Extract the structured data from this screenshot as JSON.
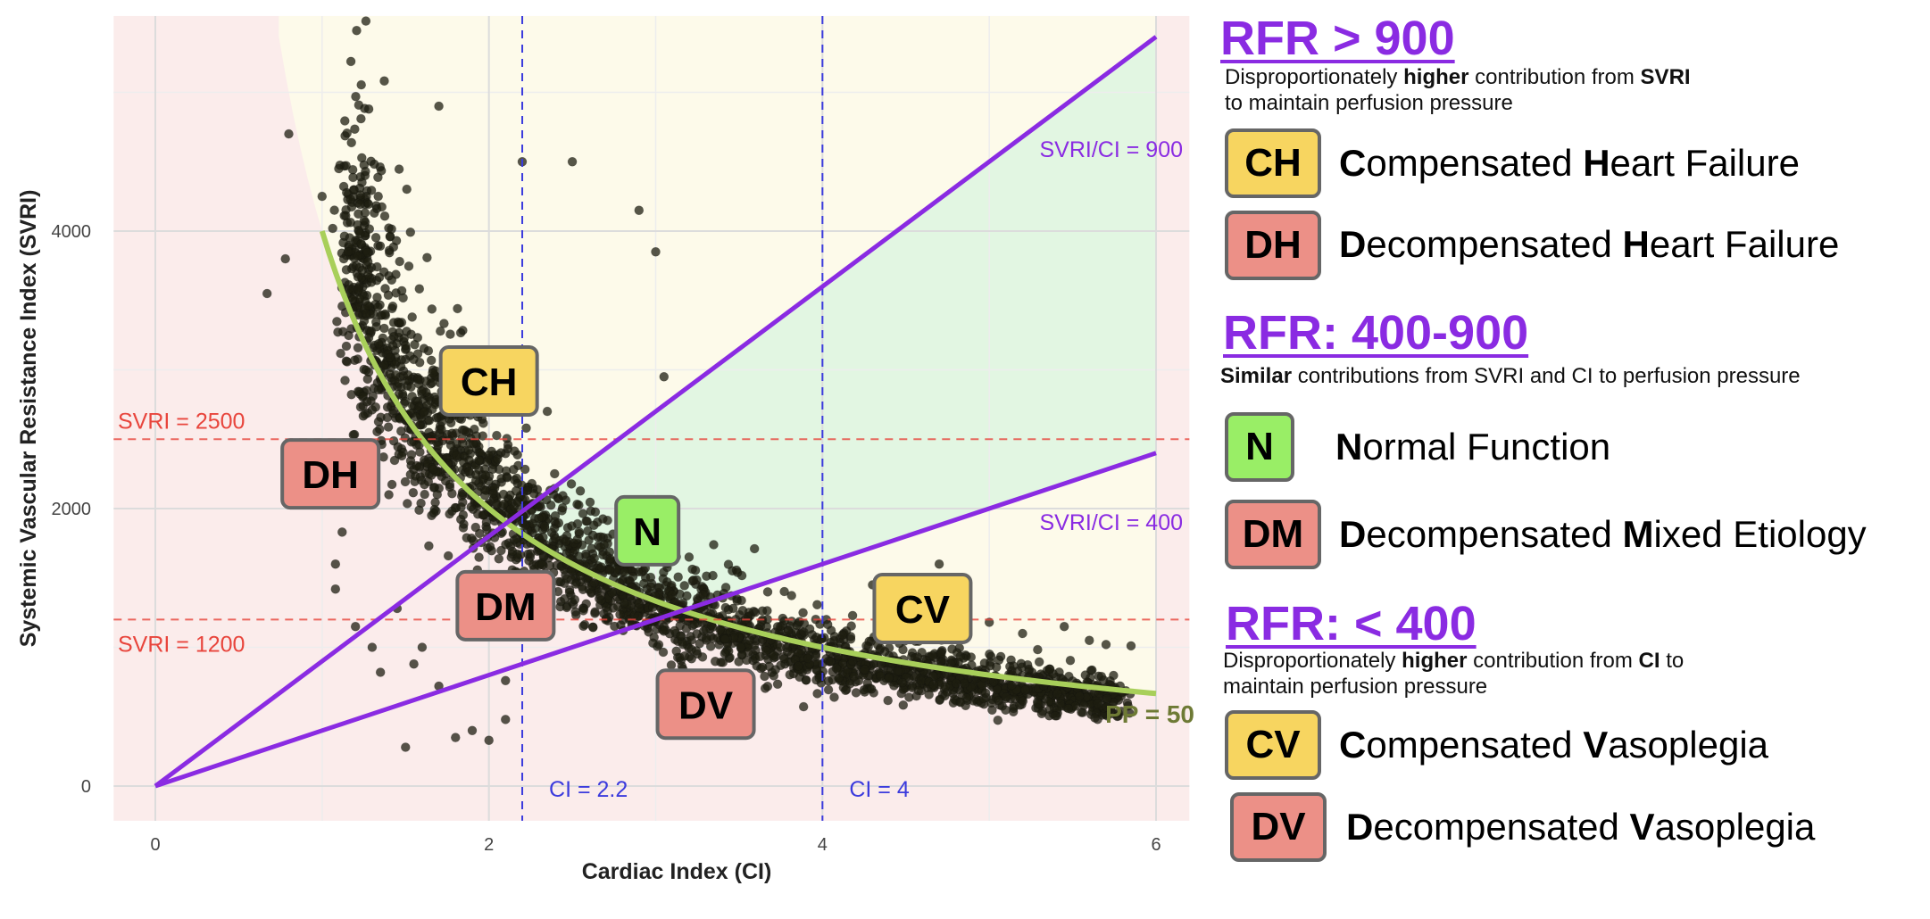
{
  "chart_data": {
    "type": "scatter",
    "xlabel": "Cardiac Index (CI)",
    "ylabel": "Systemic Vascular Resistance Index (SVRI)",
    "xlim": [
      -0.25,
      6.2
    ],
    "ylim": [
      -250,
      5550
    ],
    "x_ticks": [
      0,
      2,
      4,
      6
    ],
    "y_ticks": [
      0,
      2000,
      4000
    ],
    "grid": true,
    "hlines": [
      {
        "y": 2500,
        "label": "SVRI = 2500",
        "color": "#e8453c"
      },
      {
        "y": 1200,
        "label": "SVRI = 1200",
        "color": "#e8453c"
      }
    ],
    "vlines": [
      {
        "x": 2.2,
        "label": "CI = 2.2",
        "color": "#3b3bdd"
      },
      {
        "x": 4,
        "label": "CI = 4",
        "color": "#3b3bdd"
      }
    ],
    "ratio_lines": [
      {
        "slope": 900,
        "label": "SVRI/CI = 900",
        "color": "#8a2be2"
      },
      {
        "slope": 400,
        "label": "SVRI/CI = 400",
        "color": "#8a2be2"
      }
    ],
    "curve": {
      "formula": "SVRI = 4000 / CI",
      "label": "PP = 50",
      "x_range": [
        1,
        6
      ],
      "color": "#a8cf5a"
    },
    "region_colors": {
      "low": "#fbeceb",
      "high": "#fdfaea",
      "band": "#e2f6e2"
    },
    "scatter_color": "#1e1e10",
    "outlier_points": [
      [
        0.67,
        3550
      ],
      [
        0.78,
        3800
      ],
      [
        0.8,
        4700
      ],
      [
        1.0,
        4250
      ],
      [
        1.1,
        4450
      ],
      [
        1.28,
        4880
      ],
      [
        1.7,
        4900
      ],
      [
        2.2,
        4500
      ],
      [
        2.5,
        4500
      ],
      [
        2.9,
        4150
      ],
      [
        3.0,
        3850
      ],
      [
        3.05,
        2950
      ],
      [
        3.2,
        1650
      ],
      [
        1.05,
        2200
      ],
      [
        1.12,
        1830
      ],
      [
        1.08,
        1600
      ],
      [
        1.08,
        1420
      ],
      [
        1.2,
        1150
      ],
      [
        1.3,
        1000
      ],
      [
        1.35,
        820
      ],
      [
        1.45,
        1280
      ],
      [
        1.5,
        280
      ],
      [
        1.8,
        350
      ],
      [
        1.9,
        400
      ],
      [
        2.0,
        330
      ],
      [
        2.1,
        480
      ],
      [
        1.6,
        1000
      ],
      [
        1.7,
        720
      ],
      [
        1.55,
        880
      ],
      [
        2.1,
        760
      ],
      [
        5.0,
        1180
      ],
      [
        5.2,
        1100
      ],
      [
        5.6,
        1050
      ],
      [
        5.7,
        1020
      ],
      [
        5.85,
        1010
      ],
      [
        5.45,
        1150
      ],
      [
        2.35,
        2700
      ],
      [
        4.3,
        1450
      ],
      [
        4.7,
        1600
      ],
      [
        1.4,
        2100
      ]
    ],
    "region_labels": [
      {
        "text": "CH",
        "x": 2.0,
        "y": 2920,
        "color": "yellow"
      },
      {
        "text": "DH",
        "x": 1.05,
        "y": 2250,
        "color": "red"
      },
      {
        "text": "N",
        "x": 2.95,
        "y": 1840,
        "color": "green"
      },
      {
        "text": "DM",
        "x": 2.1,
        "y": 1300,
        "color": "red"
      },
      {
        "text": "CV",
        "x": 4.6,
        "y": 1280,
        "color": "yellow"
      },
      {
        "text": "DV",
        "x": 3.3,
        "y": 590,
        "color": "red"
      }
    ]
  },
  "legend": {
    "sections": [
      {
        "title": "RFR > 900",
        "desc_parts": [
          "Disproportionately ",
          "higher",
          " contribution from ",
          "SVRI",
          "to maintain perfusion pressure"
        ],
        "items": [
          {
            "badge": "CH",
            "color": "yellow",
            "w1": "C",
            "r1": "ompensated ",
            "w2": "H",
            "r2": "eart Failure"
          },
          {
            "badge": "DH",
            "color": "red",
            "w1": "D",
            "r1": "ecompensated ",
            "w2": "H",
            "r2": "eart Failure"
          }
        ]
      },
      {
        "title": "RFR: 400-900",
        "desc_parts": [
          "Similar",
          " contributions from SVRI and CI to perfusion pressure"
        ],
        "items": [
          {
            "badge": "N",
            "color": "green",
            "w1": "N",
            "r1": "ormal Function"
          },
          {
            "badge": "DM",
            "color": "red",
            "w1": "D",
            "r1": "ecompensated ",
            "w2": "M",
            "r2": "ixed Etiology"
          }
        ]
      },
      {
        "title": "RFR: < 400",
        "desc_parts": [
          "Disproportionately ",
          "higher",
          " contribution from ",
          "CI",
          " to",
          "maintain perfusion pressure"
        ],
        "items": [
          {
            "badge": "CV",
            "color": "yellow",
            "w1": "C",
            "r1": "ompensated ",
            "w2": "V",
            "r2": "asoplegia"
          },
          {
            "badge": "DV",
            "color": "red",
            "w1": "D",
            "r1": "ecompensated ",
            "w2": "V",
            "r2": "asoplegia"
          }
        ]
      }
    ]
  }
}
